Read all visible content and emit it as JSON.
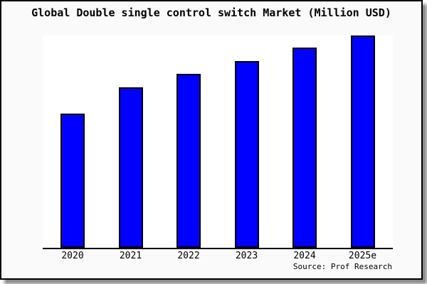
{
  "title": "Global Double single control switch Market (Million USD)",
  "source": "Source: Prof Research",
  "colors": {
    "bar_fill": "#0000FF",
    "bar_border": "#000000",
    "canvas_background": "#FAFAFA",
    "plot_background": "#FFFFFF",
    "axis": "#000000",
    "frame_border": "#000000"
  },
  "chart_data": {
    "type": "bar",
    "title": "Global Double single control switch Market (Million USD)",
    "categories": [
      "2020",
      "2021",
      "2022",
      "2023",
      "2024",
      "2025e"
    ],
    "values": [
      63.2,
      75.6,
      81.9,
      88.0,
      94.3,
      100
    ],
    "xlabel": "",
    "ylabel": "",
    "ylim": [
      0,
      100
    ],
    "y_axis_shown": false,
    "grid": false,
    "legend": "none",
    "note": "No y-axis or value labels shown; values are relative heights with 2025e = 100"
  }
}
